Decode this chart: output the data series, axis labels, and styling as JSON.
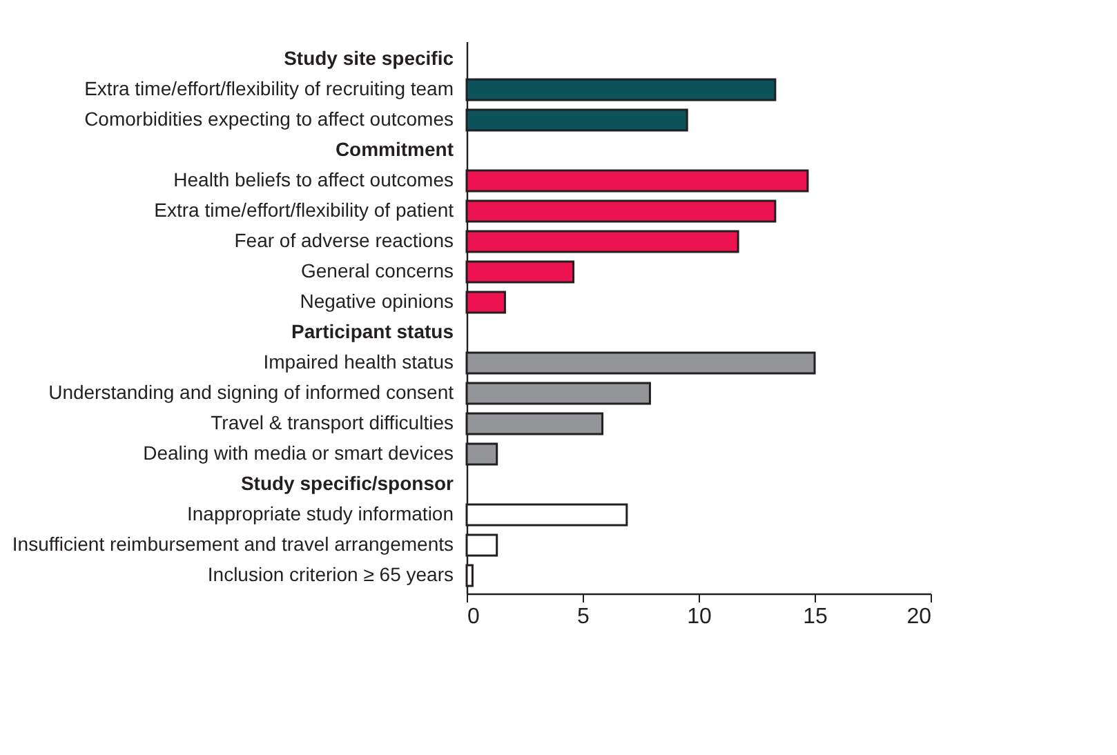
{
  "chart_data": {
    "type": "bar",
    "orientation": "horizontal",
    "categories": [
      "Study site specific",
      "Extra time/effort/flexibility of recruiting team",
      "Comorbidities expecting to affect outcomes",
      "Commitment",
      "Health beliefs to affect outcomes",
      "Extra time/effort/flexibility of patient",
      "Fear of adverse reactions",
      "General concerns",
      "Negative opinions",
      "Participant status",
      "Impaired health status",
      "Understanding and signing of informed consent",
      "Travel & transport difficulties",
      "Dealing with media or smart devices",
      "Study specific/sponsor",
      "Inappropriate study information",
      "Insufficient reimbursement and travel arrangements",
      "Inclusion criterion ≥ 65 years"
    ],
    "values": [
      null,
      13.3,
      9.5,
      null,
      14.7,
      13.3,
      11.7,
      4.6,
      1.65,
      null,
      15.0,
      7.9,
      5.85,
      1.3,
      null,
      6.9,
      1.3,
      0.25
    ],
    "colors": [
      null,
      "#0b525b",
      "#0b525b",
      null,
      "#ec1350",
      "#ec1350",
      "#ec1350",
      "#ec1350",
      "#ec1350",
      null,
      "#939598",
      "#939598",
      "#939598",
      "#939598",
      null,
      "#ffffff",
      "#ffffff",
      "#ffffff"
    ],
    "xlim": [
      0,
      20
    ],
    "xticks": [
      0,
      5,
      10,
      15,
      20
    ],
    "grid": false
  }
}
